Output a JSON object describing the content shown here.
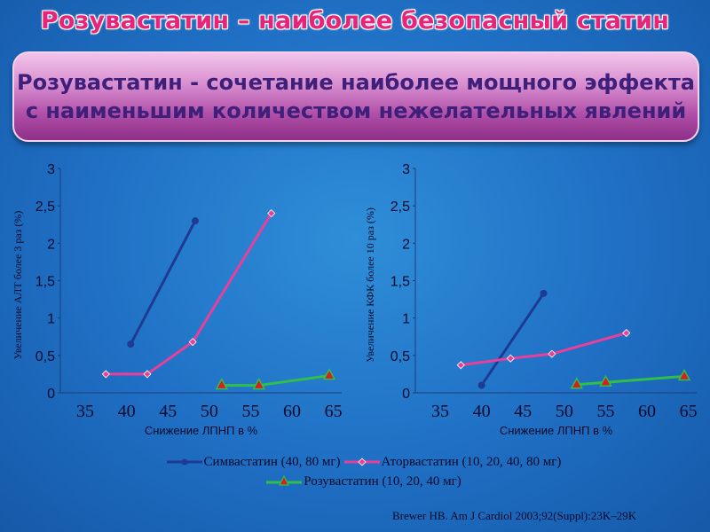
{
  "title": "Розувастатин – наиболее безопасный статин",
  "banner": {
    "line1": "Розувастатин - сочетание наиболее мощного эффекта",
    "line2": "с наименьшим количеством нежелательных явлений"
  },
  "colors": {
    "simvastatin": "#1f3a93",
    "atorvastatin": "#e8409a",
    "rosuvastatin": "#2fbf4a",
    "rosuvastatin_marker": "#d42020"
  },
  "legend": {
    "simvastatin": "Симвастатин (40, 80 мг)",
    "atorvastatin": "Аторвастатин (10, 20, 40, 80 мг)",
    "rosuvastatin": "Розувастатин (10, 20, 40 мг)"
  },
  "source": "Brewer HB. Am J Cardiol 2003;92(Suppl):23K–29K",
  "chart_data": [
    {
      "type": "line",
      "ylabel": "Увеличение АЛТ более 3 раз (%)",
      "xlabel": "Снижение ЛПНП в %",
      "xlim": [
        32,
        66
      ],
      "ylim": [
        0,
        3
      ],
      "x_ticks": [
        "35",
        "40",
        "45",
        "50",
        "55",
        "60",
        "65"
      ],
      "y_ticks": [
        "0",
        "0,5",
        "1",
        "1,5",
        "2",
        "2,5",
        "3"
      ],
      "grid": false,
      "series": [
        {
          "name": "Симвастатин (40, 80 мг)",
          "key": "simvastatin",
          "marker": "circle",
          "x": [
            40.5,
            48.3
          ],
          "y": [
            0.65,
            2.3
          ]
        },
        {
          "name": "Аторвастатин (10, 20, 40, 80 мг)",
          "key": "atorvastatin",
          "marker": "diamond",
          "x": [
            37.5,
            42.5,
            48,
            57.5
          ],
          "y": [
            0.25,
            0.25,
            0.68,
            2.4
          ]
        },
        {
          "name": "Розувастатин (10, 20, 40 мг)",
          "key": "rosuvastatin",
          "marker": "triangle",
          "x": [
            51.5,
            56,
            64.5
          ],
          "y": [
            0.1,
            0.1,
            0.23
          ]
        }
      ]
    },
    {
      "type": "line",
      "ylabel": "Увеличение КФК более 10 раз (%)",
      "xlabel": "Снижение ЛПНП в %",
      "xlim": [
        32,
        66
      ],
      "ylim": [
        0,
        3
      ],
      "x_ticks": [
        "35",
        "40",
        "45",
        "50",
        "55",
        "60",
        "65"
      ],
      "y_ticks": [
        "0",
        "0,5",
        "1",
        "1,5",
        "2",
        "2,5",
        "3"
      ],
      "grid": false,
      "series": [
        {
          "name": "Симвастатин (40, 80 мг)",
          "key": "simvastatin",
          "marker": "circle",
          "x": [
            40,
            47.5
          ],
          "y": [
            0.1,
            1.33
          ]
        },
        {
          "name": "Аторвастатин (10, 20, 40, 80 мг)",
          "key": "atorvastatin",
          "marker": "diamond",
          "x": [
            37.5,
            43.5,
            48.5,
            57.5
          ],
          "y": [
            0.37,
            0.46,
            0.52,
            0.8
          ]
        },
        {
          "name": "Розувастатин (10, 20, 40 мг)",
          "key": "rosuvastatin",
          "marker": "triangle",
          "x": [
            51.5,
            55,
            64.5
          ],
          "y": [
            0.11,
            0.14,
            0.22
          ]
        }
      ]
    }
  ]
}
